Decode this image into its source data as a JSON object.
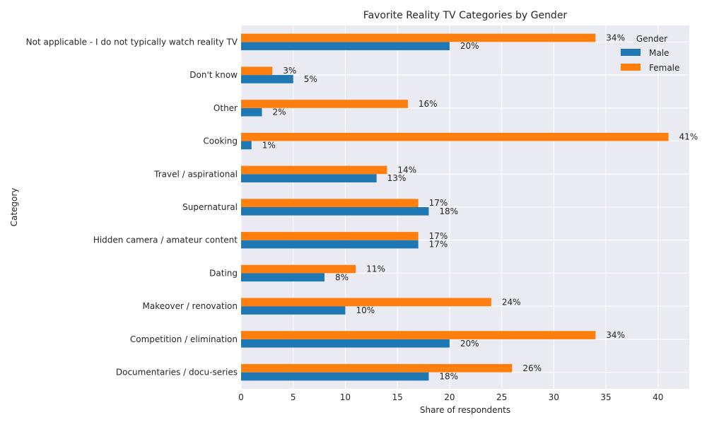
{
  "chart_data": {
    "type": "bar",
    "orientation": "horizontal",
    "title": "Favorite Reality TV Categories by Gender",
    "xlabel": "Share of respondents",
    "ylabel": "Category",
    "xlim": [
      0,
      43
    ],
    "xticks": [
      0,
      5,
      10,
      15,
      20,
      25,
      30,
      35,
      40
    ],
    "grid": true,
    "legend": {
      "title": "Gender",
      "placement": "top-right"
    },
    "categories": [
      "Documentaries / docu-series",
      "Competition / elimination",
      "Makeover / renovation",
      "Dating",
      "Hidden camera / amateur content",
      "Supernatural",
      "Travel / aspirational",
      "Cooking",
      "Other",
      "Don't know",
      "Not applicable - I do not typically watch reality TV"
    ],
    "series": [
      {
        "name": "Male",
        "color": "#1f77b4",
        "values": [
          18,
          20,
          10,
          8,
          17,
          18,
          13,
          1,
          2,
          5,
          20
        ]
      },
      {
        "name": "Female",
        "color": "#ff7f0e",
        "values": [
          26,
          34,
          24,
          11,
          17,
          17,
          14,
          41,
          16,
          3,
          34
        ]
      }
    ],
    "value_suffix": "%"
  }
}
